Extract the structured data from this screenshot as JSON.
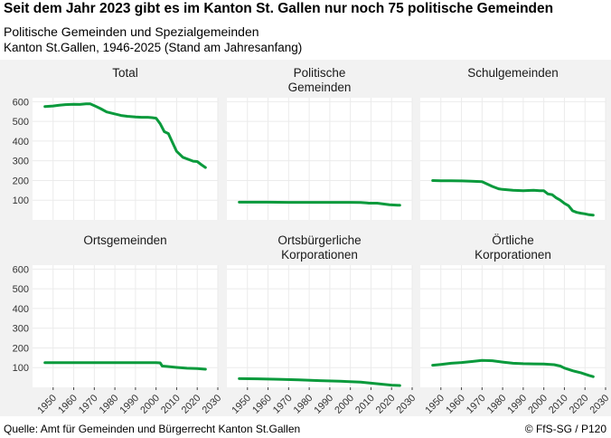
{
  "header": {
    "title": "Seit dem Jahr 2023 gibt es im Kanton St. Gallen nur noch 75 politische Gemeinden",
    "subtitle": "Politische Gemeinden und Spezialgemeinden",
    "subsubtitle": "Kanton St.Gallen, 1946-2025 (Stand am Jahresanfang)"
  },
  "footer": {
    "source": "Quelle: Amt für Gemeinden und Bürgerrecht Kanton St.Gallen",
    "credit": "© FfS-SG / P120"
  },
  "colors": {
    "line": "#0a9a3c",
    "panel_bg": "#ffffff",
    "strip_bg": "#ececec",
    "grid": "#ebebeb"
  },
  "chart_data": {
    "type": "line",
    "layout": "facet-grid 2x3",
    "xlim": [
      1940,
      2030
    ],
    "ylim": [
      0,
      620
    ],
    "x_ticks": [
      1950,
      1960,
      1970,
      1980,
      1990,
      2000,
      2010,
      2020,
      2030
    ],
    "y_ticks": [
      100,
      200,
      300,
      400,
      500,
      600
    ],
    "grid": true,
    "legend": "none",
    "panels": [
      {
        "name": "Total",
        "x": [
          1946,
          1950,
          1953,
          1956,
          1960,
          1963,
          1966,
          1968,
          1970,
          1973,
          1976,
          1980,
          1983,
          1986,
          1990,
          1993,
          1996,
          1998,
          2000,
          2002,
          2004,
          2006,
          2008,
          2010,
          2013,
          2016,
          2018,
          2020,
          2022,
          2024
        ],
        "y": [
          575,
          578,
          582,
          585,
          587,
          586,
          589,
          589,
          580,
          565,
          548,
          538,
          530,
          526,
          522,
          521,
          521,
          519,
          516,
          488,
          448,
          438,
          392,
          348,
          318,
          306,
          298,
          296,
          280,
          266
        ]
      },
      {
        "name": "Politische\nGemeinden",
        "x": [
          1946,
          1960,
          1970,
          1980,
          1990,
          2000,
          2005,
          2008,
          2009,
          2013,
          2019,
          2023,
          2024
        ],
        "y": [
          90,
          90,
          89,
          89,
          89,
          89,
          88,
          86,
          85,
          85,
          77,
          75,
          75
        ]
      },
      {
        "name": "Schulgemeinden",
        "x": [
          1946,
          1950,
          1955,
          1960,
          1965,
          1970,
          1975,
          1978,
          1980,
          1985,
          1990,
          1995,
          1998,
          2000,
          2002,
          2004,
          2006,
          2008,
          2010,
          2012,
          2014,
          2016,
          2018,
          2020,
          2022,
          2024
        ],
        "y": [
          200,
          199,
          199,
          198,
          196,
          194,
          170,
          158,
          155,
          150,
          148,
          150,
          148,
          148,
          132,
          128,
          112,
          100,
          84,
          72,
          46,
          38,
          34,
          31,
          26,
          24
        ]
      },
      {
        "name": "Ortsgemeinden",
        "x": [
          1946,
          1960,
          1970,
          1980,
          1990,
          2000,
          2002,
          2003,
          2005,
          2010,
          2015,
          2020,
          2024
        ],
        "y": [
          125,
          125,
          125,
          125,
          125,
          125,
          124,
          108,
          106,
          101,
          97,
          95,
          92
        ]
      },
      {
        "name": "Ortsbürgerliche\nKorporationen",
        "x": [
          1946,
          1955,
          1965,
          1975,
          1985,
          1995,
          2005,
          2010,
          2015,
          2020,
          2024
        ],
        "y": [
          44,
          43,
          41,
          38,
          34,
          31,
          26,
          21,
          16,
          11,
          9
        ]
      },
      {
        "name": "Örtliche\nKorporationen",
        "x": [
          1946,
          1950,
          1955,
          1960,
          1965,
          1970,
          1975,
          1980,
          1985,
          1990,
          1995,
          2000,
          2005,
          2008,
          2010,
          2014,
          2018,
          2020,
          2022,
          2024
        ],
        "y": [
          112,
          116,
          122,
          126,
          131,
          137,
          135,
          128,
          122,
          120,
          119,
          118,
          115,
          108,
          98,
          84,
          74,
          67,
          60,
          54
        ]
      }
    ]
  }
}
